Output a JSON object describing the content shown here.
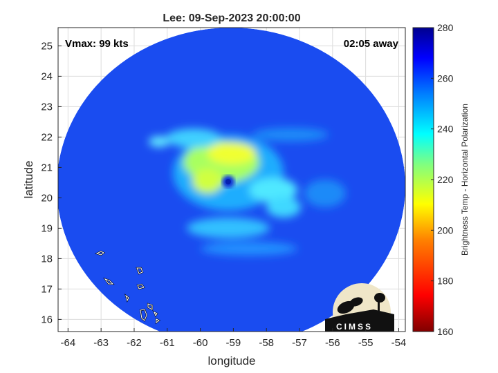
{
  "chart_data": {
    "type": "heatmap",
    "title": "Lee: 09-Sep-2023 20:00:00",
    "xlabel": "longitude",
    "ylabel": "latitude",
    "xlim": [
      -64.3,
      -53.8
    ],
    "ylim": [
      15.6,
      25.6
    ],
    "xticks": [
      -64,
      -63,
      -62,
      -61,
      -60,
      -59,
      -58,
      -57,
      -56,
      -55,
      -54
    ],
    "yticks": [
      16,
      17,
      18,
      19,
      20,
      21,
      22,
      23,
      24,
      25
    ],
    "grid": true,
    "annotations": {
      "vmax": "Vmax: 99 kts",
      "time_offset": "02:05 away"
    },
    "storm_center": {
      "lon": -59.1,
      "lat": 20.6
    },
    "colorbar": {
      "label": "Brightness Temp - Horizontal Polarization",
      "min": 160,
      "max": 280,
      "ticks": [
        160,
        180,
        200,
        220,
        240,
        260,
        280
      ],
      "colormap": "jet"
    },
    "background_value_approx": 262,
    "eyewall_value_approx": 215,
    "colors": {
      "jet": [
        "#00008f",
        "#0000ff",
        "#0080ff",
        "#00ffff",
        "#80ff80",
        "#ffff00",
        "#ff8000",
        "#ff0000",
        "#800000"
      ]
    }
  },
  "logo": {
    "text": "CIMSS"
  }
}
